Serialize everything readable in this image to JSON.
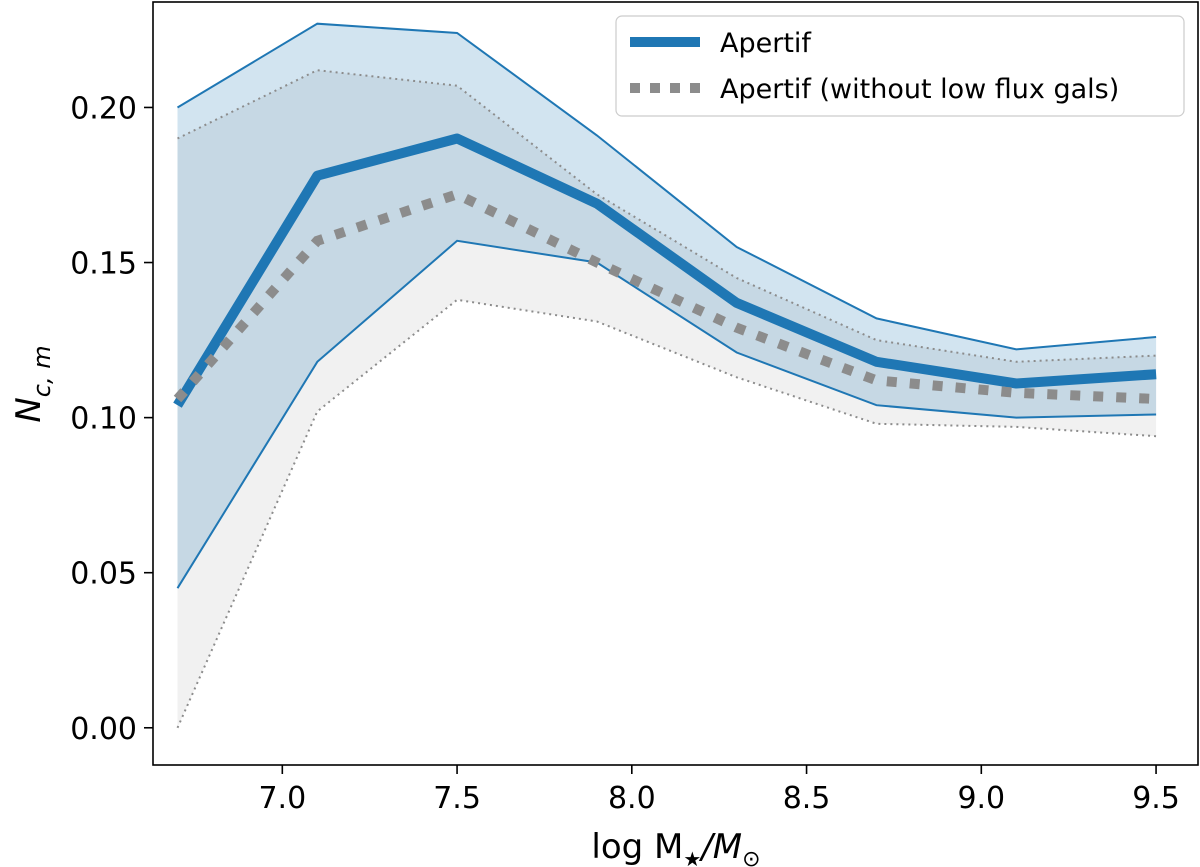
{
  "chart_data": {
    "type": "line",
    "xlabel_text": "log M",
    "xlabel_sub1": "★",
    "xlabel_mid": "/M",
    "xlabel_sub2": "⊙",
    "ylabel_base": "N",
    "ylabel_sub": "c, m",
    "xlim": [
      6.63,
      9.62
    ],
    "ylim": [
      -0.012,
      0.234
    ],
    "xticks": [
      7.0,
      7.5,
      8.0,
      8.5,
      9.0,
      9.5
    ],
    "xtick_labels": [
      "7.0",
      "7.5",
      "8.0",
      "8.5",
      "9.0",
      "9.5"
    ],
    "yticks": [
      0.0,
      0.05,
      0.1,
      0.15,
      0.2
    ],
    "ytick_labels": [
      "0.00",
      "0.05",
      "0.10",
      "0.15",
      "0.20"
    ],
    "grid": false,
    "legend_position": "top-right",
    "x": [
      6.7,
      7.1,
      7.5,
      7.9,
      8.3,
      8.7,
      9.1,
      9.5
    ],
    "series": [
      {
        "name": "Apertif",
        "style": "solid",
        "color": "#1f77b4",
        "fill_color": "#1f77b4",
        "values": [
          0.104,
          0.178,
          0.19,
          0.169,
          0.137,
          0.118,
          0.111,
          0.114
        ],
        "upper": [
          0.2,
          0.227,
          0.224,
          0.191,
          0.155,
          0.132,
          0.122,
          0.126
        ],
        "lower": [
          0.045,
          0.118,
          0.157,
          0.15,
          0.121,
          0.104,
          0.1,
          0.101
        ]
      },
      {
        "name": "Apertif (without low flux gals)",
        "style": "dotted",
        "color": "#8c8c8c",
        "fill_color": "#b0b0b0",
        "values": [
          0.106,
          0.157,
          0.172,
          0.15,
          0.129,
          0.112,
          0.108,
          0.106
        ],
        "upper": [
          0.19,
          0.212,
          0.207,
          0.172,
          0.145,
          0.125,
          0.118,
          0.12
        ],
        "lower": [
          0.0,
          0.102,
          0.138,
          0.131,
          0.113,
          0.098,
          0.097,
          0.094
        ]
      }
    ]
  }
}
